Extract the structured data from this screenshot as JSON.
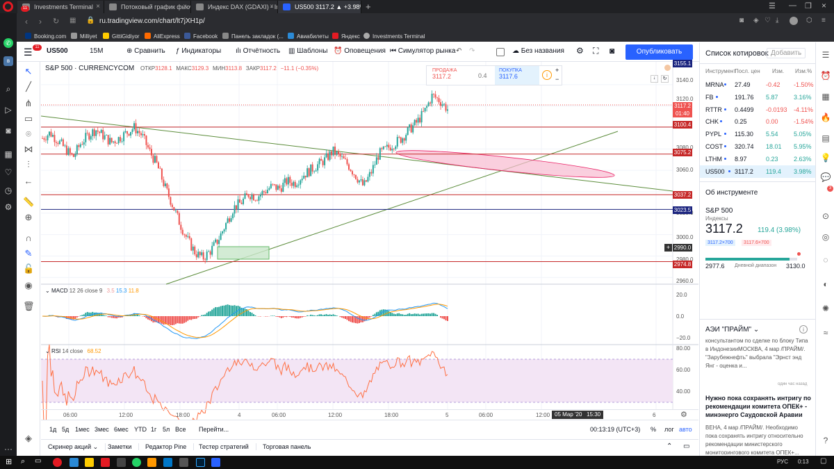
{
  "browser": {
    "tabs": [
      {
        "label": "Investments Terminal",
        "active": false
      },
      {
        "label": "Потоковый график фьючер",
        "active": false
      },
      {
        "label": "Индекс DAX (GDAXI) - Inve",
        "active": false
      },
      {
        "label": "US500 3117.2 ▲ +3.98% Бе",
        "active": true
      }
    ],
    "opera_badge": "11",
    "url": "ru.tradingview.com/chart/lt7jXH1p/",
    "bookmarks": [
      "Booking.com",
      "Milliyet",
      "GittiGidiyor",
      "AliExpress",
      "Facebook",
      "Панель закладок (...",
      "Авиабилеты",
      "Яндекс",
      "Investments Terminal"
    ]
  },
  "toolbar": {
    "symbol": "US500",
    "interval": "15М",
    "compare": "Сравнить",
    "indicators": "Индикаторы",
    "financials": "Отчётность",
    "templates": "Шаблоны",
    "alerts": "Оповещения",
    "replay": "Симулятор рынка",
    "layout": "Без названия",
    "publish": "Опубликовать"
  },
  "chart": {
    "title": "S&P 500 · CURRENCYCOM",
    "ohlc": {
      "o_label": "ОТКР",
      "o": "3128.1",
      "h_label": "МАКС",
      "h": "3129.3",
      "l_label": "МИН",
      "l": "3113.8",
      "c_label": "ЗАКР",
      "c": "3117.2",
      "chg": "−11.1 (−0.35%)"
    },
    "sell": {
      "label": "ПРОДАЖА",
      "price": "3117.2"
    },
    "spread": "0.4",
    "buy": {
      "label": "ПОКУПКА",
      "price": "3117.6"
    },
    "price_ticks": [
      "3140.0",
      "3120.0",
      "3080.0",
      "3060.0",
      "3020.0",
      "3000.0",
      "2980.0",
      "2960.0"
    ],
    "badges": {
      "p1": "3155.1",
      "last": "3117.2",
      "countdown": "01:40",
      "r1": "3100.4",
      "r2": "3075.2",
      "r3": "3037.2",
      "r4": "3023.5",
      "r5": "2990.0",
      "r6": "2974.8"
    },
    "macd": {
      "label": "MACD",
      "params": "12 26 close 9",
      "v1": "3.5",
      "v2": "15.3",
      "v3": "11.8",
      "ticks": [
        "20.0",
        "0.0",
        "−20.0"
      ]
    },
    "rsi": {
      "label": "RSI",
      "params": "14 close",
      "value": "68.52",
      "ticks": [
        "80.00",
        "60.00",
        "40.00"
      ]
    },
    "time_ticks": [
      "06:00",
      "12:00",
      "18:00",
      "4",
      "06:00",
      "12:00",
      "18:00",
      "5",
      "06:00",
      "12:00",
      "6"
    ],
    "crosshair_time": "05 Мар '20   15:30"
  },
  "chart_data": {
    "type": "candlestick",
    "title": "S&P 500 · CURRENCYCOM",
    "ylim": [
      2955,
      3160
    ],
    "x_range": [
      "3 Мар 00:00",
      "6 Мар 02:00"
    ],
    "horizontal_levels": [
      3100.4,
      3075.2,
      3037.2,
      3023.5,
      2974.8
    ],
    "series": [
      {
        "name": "US500 15M close",
        "values": [
          3090,
          3095,
          3088,
          3080,
          3072,
          3085,
          3093,
          3098,
          3092,
          3086,
          3090,
          3095,
          3100,
          3093,
          3078,
          3065,
          3045,
          3028,
          3010,
          2995,
          2983,
          2978,
          2985,
          2995,
          3010,
          3025,
          3030,
          3038,
          3035,
          3040,
          3045,
          3043,
          3050,
          3048,
          3055,
          3060,
          3065,
          3070,
          3078,
          3072,
          3065,
          3055,
          3045,
          3058,
          3075,
          3080,
          3085,
          3090,
          3098,
          3105,
          3115,
          3130,
          3125,
          3117.2
        ]
      }
    ]
  },
  "range_buttons": [
    "1д",
    "5д",
    "1мес",
    "3мес",
    "6мес",
    "YTD",
    "1г",
    "5л",
    "Все",
    "Перейти..."
  ],
  "bottom_right": {
    "clock": "00:13:19 (UTC+3)",
    "pct": "%",
    "log": "лог",
    "auto": "авто"
  },
  "panel_tabs": [
    "Скринер акций",
    "Заметки",
    "Редактор Pine",
    "Тестер стратегий",
    "Торговая панель"
  ],
  "watchlist": {
    "title": "Список котировок",
    "add": "Добавить",
    "headers": [
      "Инструмент",
      "Посл. цен",
      "Изм.",
      "Изм.%"
    ],
    "rows": [
      {
        "sym": "MRNA",
        "last": "27.49",
        "chg": "-0.42",
        "pct": "-1.50%",
        "up": false
      },
      {
        "sym": "FB",
        "last": "191.76",
        "chg": "5.87",
        "pct": "3.16%",
        "up": true
      },
      {
        "sym": "RTTR",
        "last": "0.4499",
        "chg": "-0.0193",
        "pct": "-4.11%",
        "up": false
      },
      {
        "sym": "CHK",
        "last": "0.25",
        "chg": "0.00",
        "pct": "-1.54%",
        "up": false
      },
      {
        "sym": "PYPL",
        "last": "115.30",
        "chg": "5.54",
        "pct": "5.05%",
        "up": true
      },
      {
        "sym": "COST",
        "last": "320.74",
        "chg": "18.01",
        "pct": "5.95%",
        "up": true
      },
      {
        "sym": "LTHM",
        "last": "8.97",
        "chg": "0.23",
        "pct": "2.63%",
        "up": true
      },
      {
        "sym": "US500",
        "last": "3117.2",
        "chg": "119.4",
        "pct": "3.98%",
        "up": true
      }
    ]
  },
  "instrument": {
    "title": "Об инструменте",
    "name": "S&P 500",
    "type": "Индексы",
    "price": "3117.2",
    "chg": "119.4 (3.98%)",
    "bid": "3117.2×700",
    "ask": "3117.6×700",
    "low": "2977.6",
    "range_label": "Дневной диапазон",
    "high": "3130.0"
  },
  "news": {
    "source": "АЭИ \"ПРАЙМ\"",
    "item1": "консультантом по сделке по блоку Типа в ИндонезииМОСКВА, 4 мар /ПРАЙМ/. \"Зарубежнефть\" выбрала \"Эрнст энд Янг - оценка и...",
    "time1": "один час назад",
    "title2": "Нужно пока сохранять интригу по рекомендации комитета ОПЕК+ - минэнерго Саудовской Аравии",
    "item2": "ВЕНА, 4 мар /ПРАЙМ/. Необходимо пока сохранять интригу относительно рекомендации министерского мониторингового комитета ОПЕК+..."
  },
  "taskbar": {
    "lang": "РУС",
    "time": "0:13"
  },
  "colors": {
    "up": "#26a69a",
    "down": "#ef5350",
    "accent": "#2962ff",
    "level_red": "#c62828",
    "level_navy": "#1a237e"
  }
}
